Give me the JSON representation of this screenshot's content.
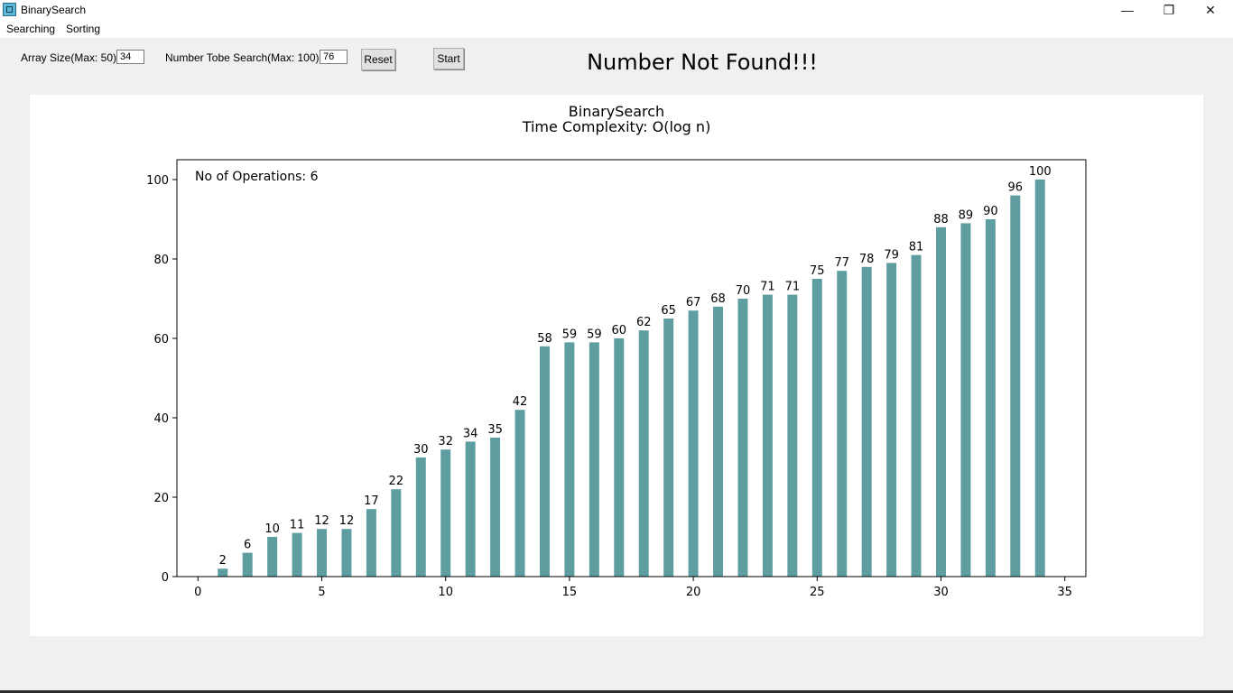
{
  "window": {
    "title": "BinarySearch",
    "minimize": "—",
    "maximize": "❐",
    "close": "✕"
  },
  "menu": {
    "items": [
      "Searching",
      "Sorting"
    ]
  },
  "controls": {
    "array_size_label": "Array Size(Max: 50)",
    "array_size_value": "34",
    "search_label": "Number Tobe Search(Max: 100)",
    "search_value": "76",
    "reset_label": "Reset",
    "start_label": "Start"
  },
  "status_text": "Number Not Found!!!",
  "chart_data": {
    "type": "bar",
    "title": "BinarySearch",
    "subtitle": "Time Complexity: O(log n)",
    "annotation": "No of Operations: 6",
    "x": [
      1,
      2,
      3,
      4,
      5,
      6,
      7,
      8,
      9,
      10,
      11,
      12,
      13,
      14,
      15,
      16,
      17,
      18,
      19,
      20,
      21,
      22,
      23,
      24,
      25,
      26,
      27,
      28,
      29,
      30,
      31,
      32,
      33,
      34
    ],
    "values": [
      2,
      6,
      10,
      11,
      12,
      12,
      17,
      22,
      30,
      32,
      34,
      35,
      42,
      58,
      59,
      59,
      60,
      62,
      65,
      67,
      68,
      70,
      71,
      71,
      75,
      77,
      78,
      79,
      81,
      88,
      89,
      90,
      96,
      100
    ],
    "xlim": [
      -0.85,
      35.85
    ],
    "ylim": [
      0,
      105
    ],
    "xticks": [
      0,
      5,
      10,
      15,
      20,
      25,
      30,
      35
    ],
    "yticks": [
      0,
      20,
      40,
      60,
      80,
      100
    ],
    "bar_width": 0.4,
    "bar_color": "#5f9ea0",
    "grid": false
  }
}
